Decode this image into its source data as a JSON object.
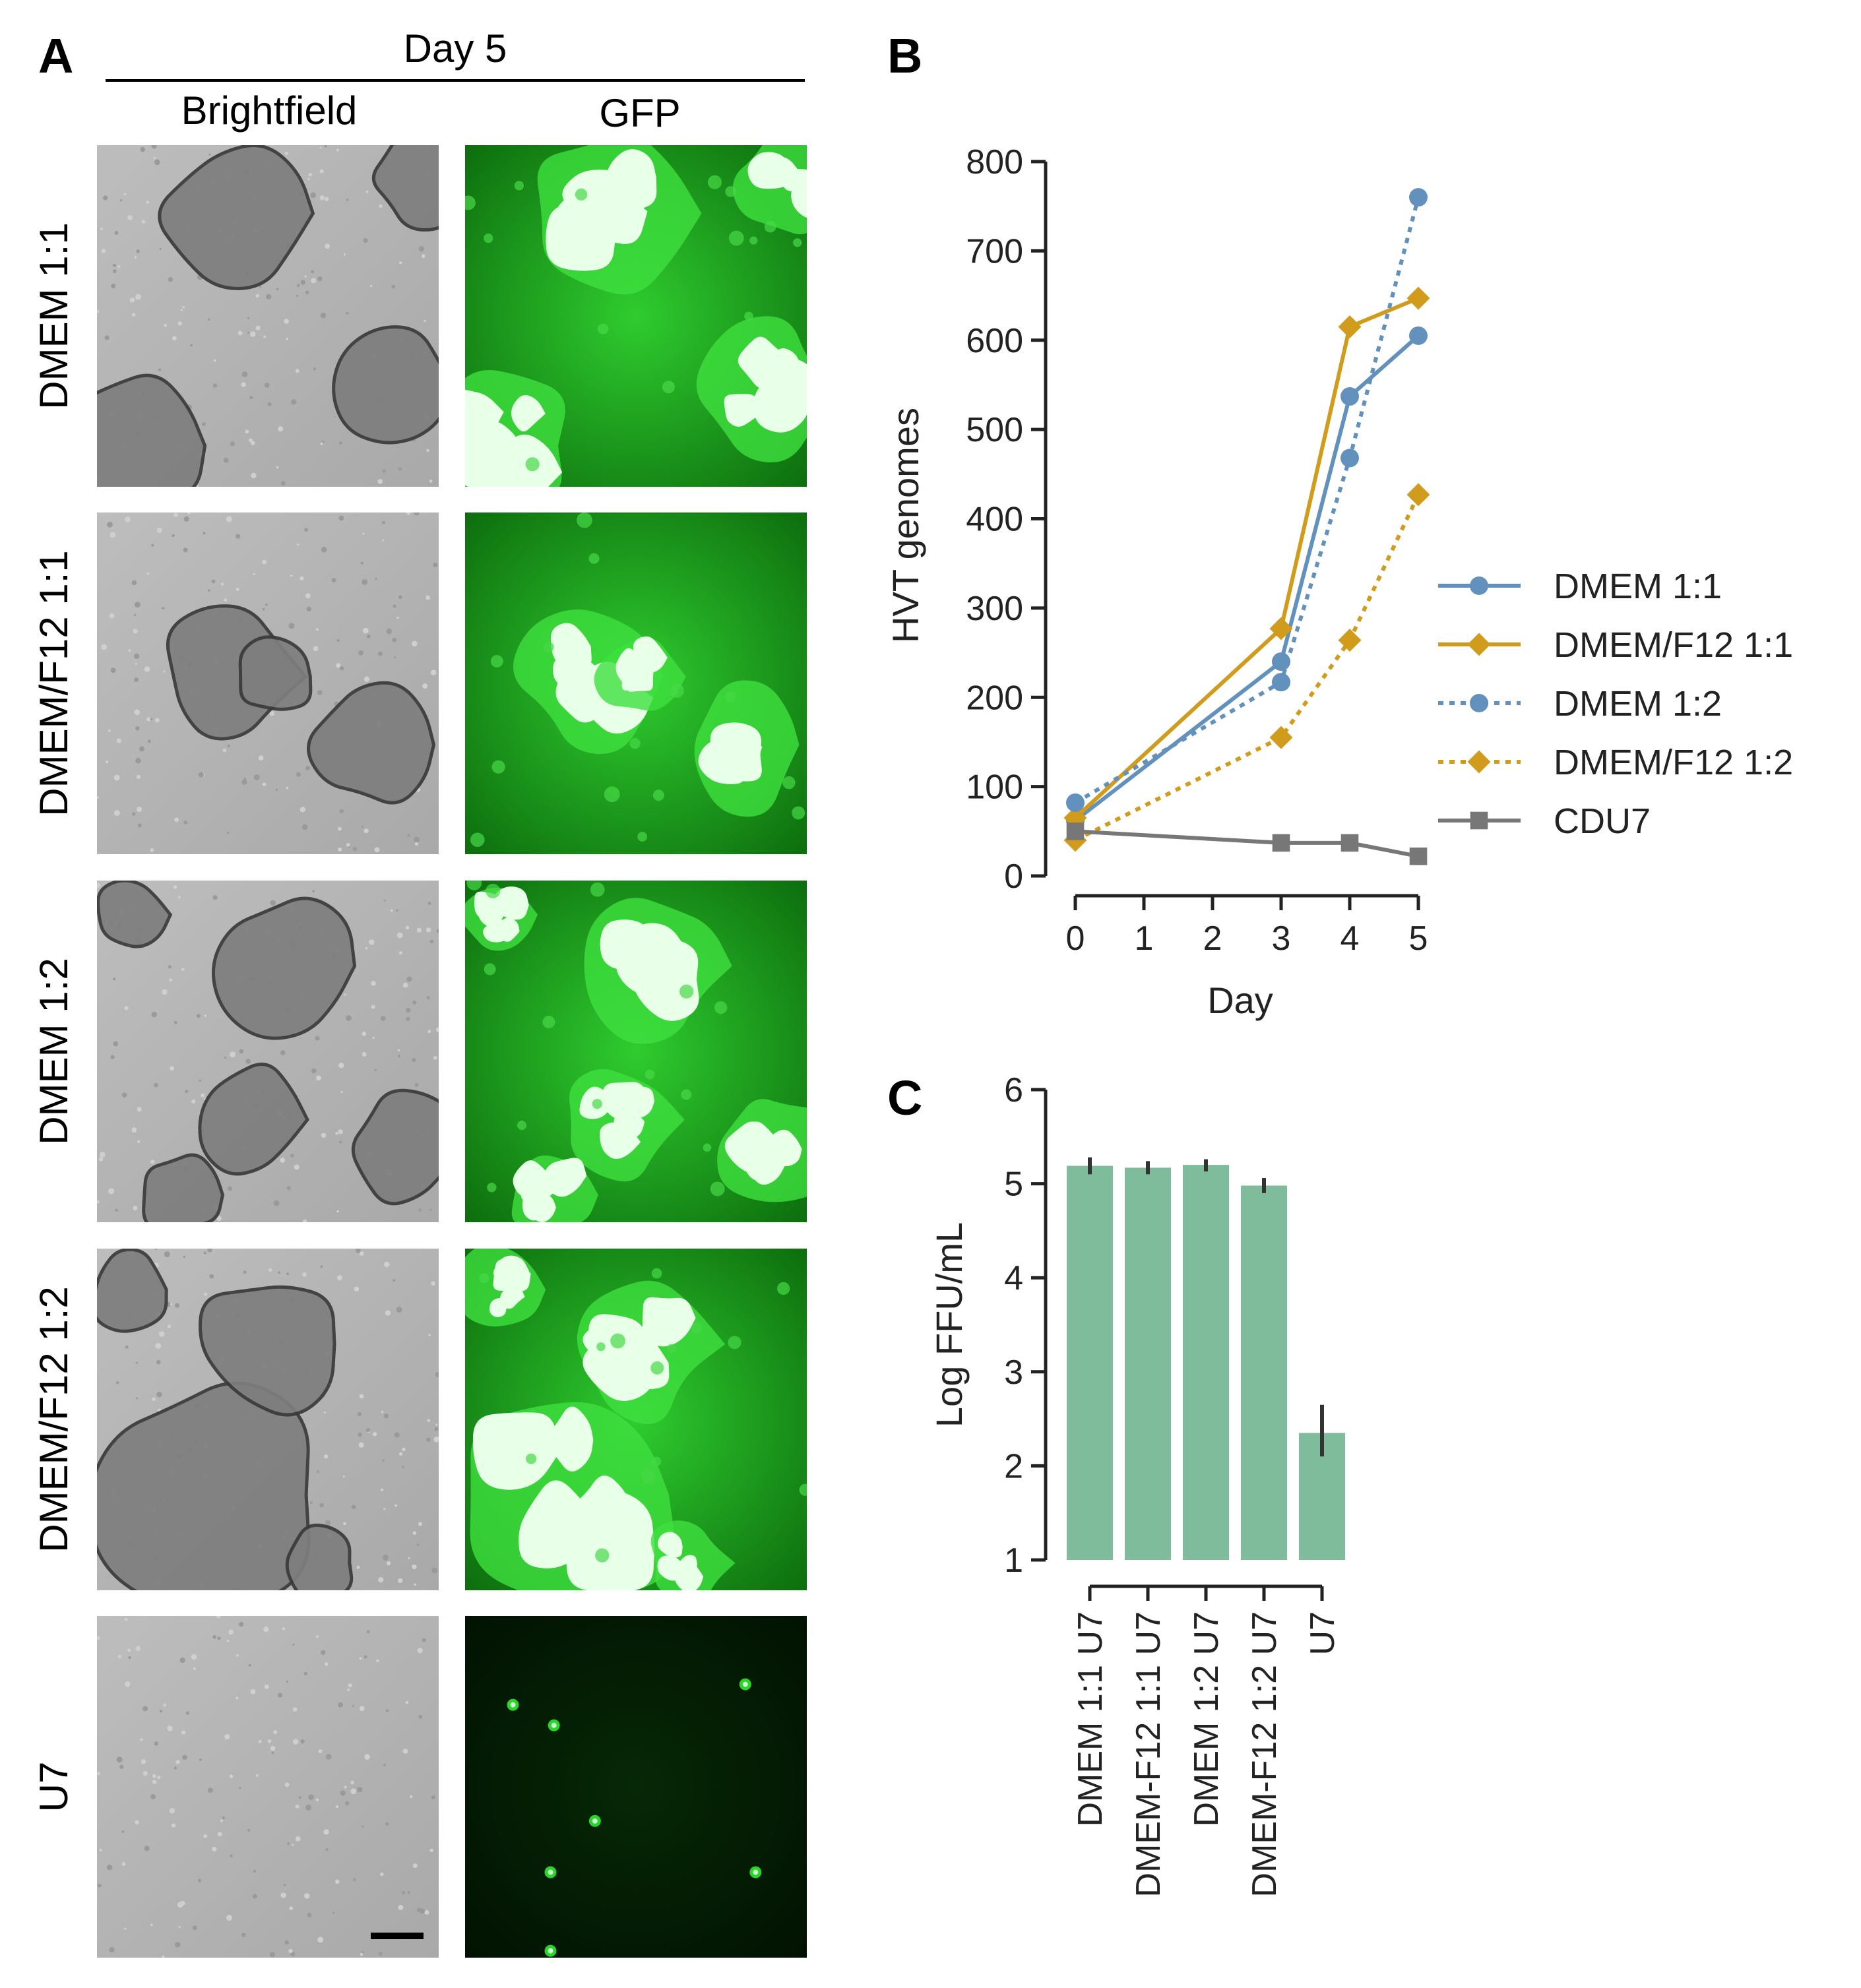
{
  "panel_a": {
    "letter": "A",
    "day_header": "Day 5",
    "col_labels": [
      "Brightfield",
      "GFP"
    ],
    "row_labels": [
      "DMEM 1:1",
      "DMEM/F12 1:1",
      "DMEM 1:2",
      "DMEM/F12 1:2",
      "U7"
    ],
    "gfp_intensity": [
      0.9,
      0.85,
      0.95,
      0.8,
      0.1
    ],
    "colors": {
      "gfp_bright": "#1aaa1a",
      "gfp_dim": "#062a06",
      "brightfield": "#b5b5b5",
      "organoid": "#7e7e7e"
    }
  },
  "panel_b": {
    "letter": "B"
  },
  "panel_c": {
    "letter": "C"
  },
  "chart_data": [
    {
      "type": "line",
      "panel": "B",
      "xlabel": "Day",
      "ylabel": "HVT genomes",
      "xlim": [
        0,
        5
      ],
      "ylim": [
        0,
        800
      ],
      "xticks": [
        0,
        1,
        2,
        3,
        4,
        5
      ],
      "yticks": [
        0,
        100,
        200,
        300,
        400,
        500,
        600,
        700,
        800
      ],
      "legend_position": "right",
      "series": [
        {
          "name": "DMEM 1:1",
          "color": "#6291be",
          "marker": "circle",
          "linestyle": "solid",
          "x": [
            0,
            3,
            4,
            5
          ],
          "y": [
            62,
            240,
            537,
            605
          ]
        },
        {
          "name": "DMEM/F12 1:1",
          "color": "#d19b1c",
          "marker": "diamond",
          "linestyle": "solid",
          "x": [
            0,
            3,
            4,
            5
          ],
          "y": [
            65,
            277,
            615,
            647
          ]
        },
        {
          "name": "DMEM 1:2",
          "color": "#6291be",
          "marker": "circle",
          "linestyle": "dotted",
          "x": [
            0,
            3,
            4,
            5
          ],
          "y": [
            82,
            217,
            468,
            760
          ]
        },
        {
          "name": "DMEM/F12 1:2",
          "color": "#d19b1c",
          "marker": "diamond",
          "linestyle": "dotted",
          "x": [
            0,
            3,
            4,
            5
          ],
          "y": [
            40,
            155,
            264,
            427
          ]
        },
        {
          "name": "CDU7",
          "color": "#777777",
          "marker": "square",
          "linestyle": "solid",
          "x": [
            0,
            3,
            4,
            5
          ],
          "y": [
            50,
            37,
            37,
            22
          ]
        }
      ]
    },
    {
      "type": "bar",
      "panel": "C",
      "ylabel": "Log FFU/mL",
      "ylim": [
        1,
        6
      ],
      "yticks": [
        1,
        2,
        3,
        4,
        5,
        6
      ],
      "bar_color": "#7fbc9b",
      "categories": [
        "DMEM 1:1 U7",
        "DMEM-F12 1:1 U7",
        "DMEM 1:2 U7",
        "DMEM-F12 1:2 U7",
        "U7"
      ],
      "values": [
        5.19,
        5.17,
        5.2,
        4.98,
        2.35
      ],
      "error": [
        [
          5.1,
          5.28
        ],
        [
          5.1,
          5.24
        ],
        [
          5.13,
          5.26
        ],
        [
          4.9,
          5.06
        ],
        [
          2.1,
          2.65
        ]
      ]
    }
  ]
}
